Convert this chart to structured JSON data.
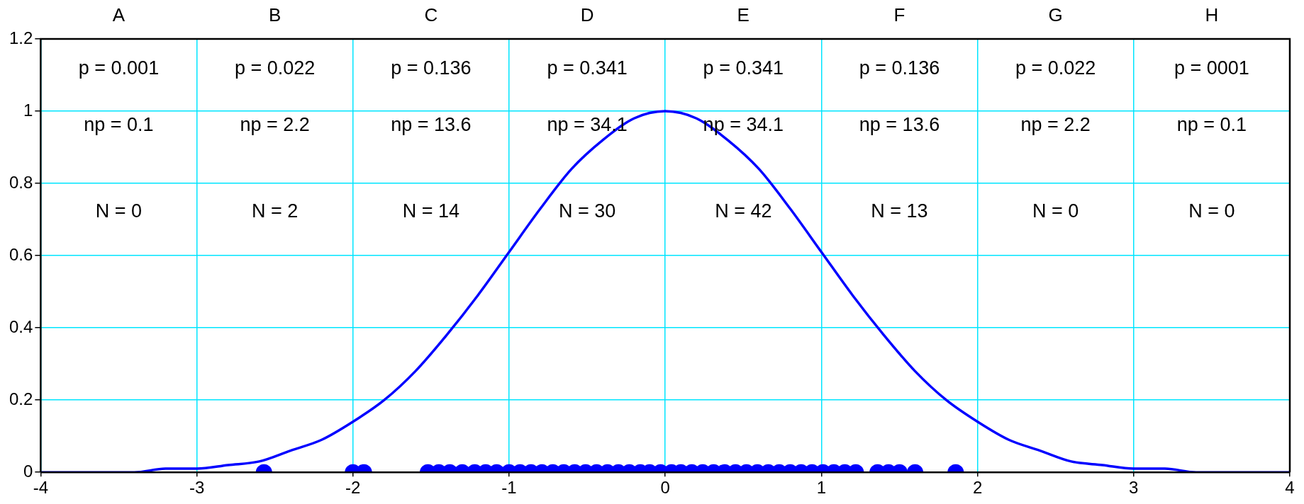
{
  "chart_data": {
    "type": "line",
    "xlim": [
      -4,
      4
    ],
    "xticks": [
      -4,
      -3,
      -2,
      -1,
      0,
      1,
      2,
      3,
      4
    ],
    "ylim": [
      0,
      1.2
    ],
    "yticks": [
      0,
      0.2,
      0.4,
      0.6,
      0.8,
      1,
      1.2
    ],
    "grid": true,
    "legend": false,
    "series": [
      {
        "color": "#0000ff",
        "marker": "none",
        "line_style": "solid",
        "x": [
          -4,
          -3.8,
          -3.6,
          -3.4,
          -3.2,
          -3,
          -2.8,
          -2.6,
          -2.4,
          -2.2,
          -2,
          -1.8,
          -1.6,
          -1.4,
          -1.2,
          -1,
          -0.8,
          -0.6,
          -0.4,
          -0.2,
          0,
          0.2,
          0.4,
          0.6,
          0.8,
          1,
          1.2,
          1.4,
          1.6,
          1.8,
          2,
          2.2,
          2.4,
          2.6,
          2.8,
          3,
          3.2,
          3.4,
          3.6,
          3.8,
          4
        ],
        "values": [
          0,
          0,
          0,
          0,
          0.01,
          0.01,
          0.02,
          0.03,
          0.06,
          0.09,
          0.14,
          0.2,
          0.28,
          0.38,
          0.49,
          0.61,
          0.73,
          0.84,
          0.92,
          0.98,
          1,
          0.98,
          0.92,
          0.84,
          0.73,
          0.61,
          0.49,
          0.38,
          0.28,
          0.2,
          0.14,
          0.09,
          0.06,
          0.03,
          0.02,
          0.01,
          0.01,
          0,
          0,
          0,
          0
        ]
      },
      {
        "type": "scatter",
        "color": "#0000ff",
        "marker": "circle",
        "x": [
          -2.57,
          -2,
          -1.93,
          -1.52,
          -1.45,
          -1.38,
          -1.3,
          -1.22,
          -1.15,
          -1.08,
          -1,
          -0.93,
          -0.86,
          -0.79,
          -0.72,
          -0.65,
          -0.58,
          -0.51,
          -0.44,
          -0.37,
          -0.3,
          -0.23,
          -0.16,
          -0.1,
          -0.03,
          0.04,
          0.1,
          0.17,
          0.24,
          0.31,
          0.38,
          0.45,
          0.52,
          0.59,
          0.66,
          0.73,
          0.8,
          0.87,
          0.94,
          1.01,
          1.08,
          1.15,
          1.22,
          1.36,
          1.43,
          1.5,
          1.6,
          1.86
        ],
        "values": [
          0,
          0,
          0,
          0,
          0,
          0,
          0,
          0,
          0,
          0,
          0,
          0,
          0,
          0,
          0,
          0,
          0,
          0,
          0,
          0,
          0,
          0,
          0,
          0,
          0,
          0,
          0,
          0,
          0,
          0,
          0,
          0,
          0,
          0,
          0,
          0,
          0,
          0,
          0,
          0,
          0,
          0,
          0,
          0,
          0,
          0,
          0,
          0
        ]
      }
    ],
    "annotations": [
      "A",
      "B",
      "C",
      "D",
      "E",
      "F",
      "G",
      "H",
      "p = 0.001",
      "p = 0.022",
      "p = 0.136",
      "p = 0.341",
      "p = 0.341",
      "p = 0.136",
      "p = 0.022",
      "p = 0001",
      "np = 0.1",
      "np = 2.2",
      "np = 13.6",
      "np = 34.1",
      "np = 34.1",
      "np = 13.6",
      "np = 2.2",
      "np = 0.1",
      "N = 0",
      "N = 2",
      "N = 14",
      "N = 30",
      "N = 42",
      "N = 13",
      "N = 0",
      "N = 0"
    ]
  }
}
